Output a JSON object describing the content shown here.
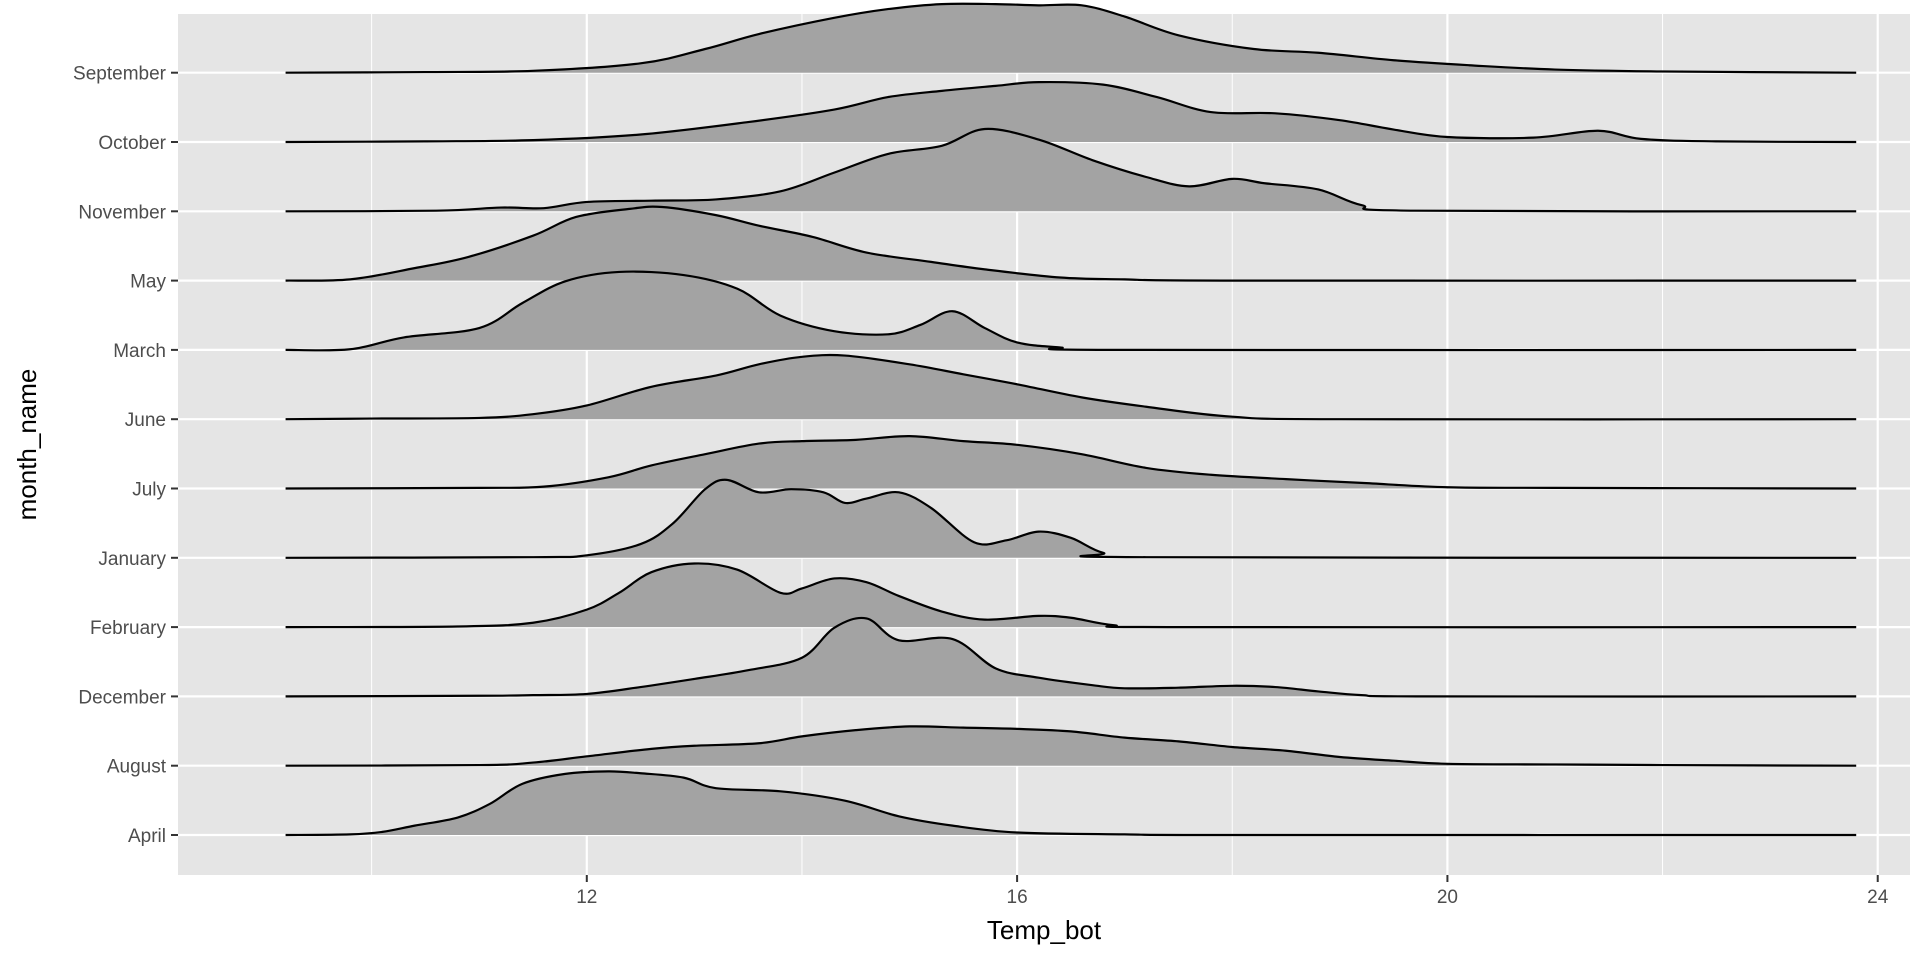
{
  "chart_data": {
    "type": "ridgeline",
    "title": "",
    "xlabel": "Temp_bot",
    "ylabel": "month_name",
    "xlim": [
      8.2,
      24.3
    ],
    "x_ticks": [
      12,
      16,
      20,
      24
    ],
    "x_minor_ticks": [
      10,
      14,
      18,
      22
    ],
    "x_range_data": [
      9.2,
      23.8
    ],
    "grid": true,
    "legend": "none",
    "fill_color": "#A3A3A3",
    "line_color": "#000000",
    "panel_color": "#E5E5E5",
    "categories": [
      "April",
      "August",
      "December",
      "February",
      "January",
      "July",
      "June",
      "March",
      "May",
      "November",
      "October",
      "September"
    ],
    "series": [
      {
        "label": "April",
        "points": [
          [
            9.2,
            0
          ],
          [
            9.8,
            0.01
          ],
          [
            10.1,
            0.05
          ],
          [
            10.4,
            0.15
          ],
          [
            10.8,
            0.28
          ],
          [
            11.1,
            0.5
          ],
          [
            11.4,
            0.82
          ],
          [
            11.8,
            0.98
          ],
          [
            12.2,
            1.02
          ],
          [
            12.5,
            0.99
          ],
          [
            12.9,
            0.92
          ],
          [
            13.2,
            0.75
          ],
          [
            13.8,
            0.7
          ],
          [
            14.4,
            0.55
          ],
          [
            14.9,
            0.3
          ],
          [
            15.4,
            0.15
          ],
          [
            16,
            0.04
          ],
          [
            17,
            0.01
          ],
          [
            18,
            0
          ],
          [
            23.8,
            0
          ]
        ]
      },
      {
        "label": "August",
        "points": [
          [
            9.2,
            0
          ],
          [
            11,
            0.01
          ],
          [
            11.5,
            0.05
          ],
          [
            12,
            0.15
          ],
          [
            12.6,
            0.27
          ],
          [
            13,
            0.32
          ],
          [
            13.6,
            0.36
          ],
          [
            14,
            0.47
          ],
          [
            14.5,
            0.57
          ],
          [
            15,
            0.63
          ],
          [
            15.5,
            0.61
          ],
          [
            16,
            0.59
          ],
          [
            16.5,
            0.55
          ],
          [
            17,
            0.45
          ],
          [
            17.5,
            0.39
          ],
          [
            18,
            0.3
          ],
          [
            18.5,
            0.24
          ],
          [
            19,
            0.14
          ],
          [
            19.5,
            0.08
          ],
          [
            20,
            0.03
          ],
          [
            21,
            0.02
          ],
          [
            22,
            0.01
          ],
          [
            23.8,
            0
          ]
        ]
      },
      {
        "label": "December",
        "points": [
          [
            9.2,
            0
          ],
          [
            11,
            0.01
          ],
          [
            11.5,
            0.02
          ],
          [
            12,
            0.04
          ],
          [
            12.5,
            0.15
          ],
          [
            13,
            0.28
          ],
          [
            13.5,
            0.42
          ],
          [
            14,
            0.62
          ],
          [
            14.3,
            1.1
          ],
          [
            14.6,
            1.25
          ],
          [
            14.9,
            0.9
          ],
          [
            15.4,
            0.92
          ],
          [
            15.8,
            0.45
          ],
          [
            16.2,
            0.3
          ],
          [
            16.7,
            0.18
          ],
          [
            17,
            0.13
          ],
          [
            17.5,
            0.14
          ],
          [
            18,
            0.17
          ],
          [
            18.4,
            0.15
          ],
          [
            18.8,
            0.08
          ],
          [
            19.2,
            0.02
          ],
          [
            19.8,
            0
          ],
          [
            23.8,
            0
          ]
        ]
      },
      {
        "label": "February",
        "points": [
          [
            9.2,
            0
          ],
          [
            10.8,
            0.01
          ],
          [
            11.5,
            0.07
          ],
          [
            12,
            0.28
          ],
          [
            12.3,
            0.55
          ],
          [
            12.6,
            0.88
          ],
          [
            13,
            1.02
          ],
          [
            13.4,
            0.92
          ],
          [
            13.8,
            0.55
          ],
          [
            14,
            0.62
          ],
          [
            14.3,
            0.78
          ],
          [
            14.6,
            0.72
          ],
          [
            14.9,
            0.5
          ],
          [
            15.3,
            0.25
          ],
          [
            15.7,
            0.12
          ],
          [
            16.2,
            0.18
          ],
          [
            16.5,
            0.15
          ],
          [
            16.9,
            0.03
          ],
          [
            17.5,
            0
          ],
          [
            23.8,
            0
          ]
        ]
      },
      {
        "label": "January",
        "points": [
          [
            9.2,
            0
          ],
          [
            11.5,
            0.01
          ],
          [
            12,
            0.04
          ],
          [
            12.5,
            0.22
          ],
          [
            12.8,
            0.55
          ],
          [
            13.1,
            1.1
          ],
          [
            13.3,
            1.25
          ],
          [
            13.6,
            1.05
          ],
          [
            13.9,
            1.1
          ],
          [
            14.2,
            1.05
          ],
          [
            14.4,
            0.88
          ],
          [
            14.6,
            0.95
          ],
          [
            14.9,
            1.05
          ],
          [
            15.2,
            0.8
          ],
          [
            15.6,
            0.25
          ],
          [
            15.9,
            0.28
          ],
          [
            16.2,
            0.42
          ],
          [
            16.5,
            0.32
          ],
          [
            16.8,
            0.08
          ],
          [
            17.2,
            0.01
          ],
          [
            23.8,
            0
          ]
        ]
      },
      {
        "label": "July",
        "points": [
          [
            9.2,
            0
          ],
          [
            11,
            0.01
          ],
          [
            11.6,
            0.03
          ],
          [
            12.2,
            0.18
          ],
          [
            12.6,
            0.37
          ],
          [
            13.1,
            0.55
          ],
          [
            13.6,
            0.72
          ],
          [
            14,
            0.76
          ],
          [
            14.5,
            0.78
          ],
          [
            15,
            0.84
          ],
          [
            15.5,
            0.76
          ],
          [
            16,
            0.7
          ],
          [
            16.6,
            0.55
          ],
          [
            17.2,
            0.33
          ],
          [
            17.8,
            0.22
          ],
          [
            18.5,
            0.15
          ],
          [
            19.2,
            0.09
          ],
          [
            20,
            0.02
          ],
          [
            21,
            0.01
          ],
          [
            23.8,
            0
          ]
        ]
      },
      {
        "label": "June",
        "points": [
          [
            9.2,
            0
          ],
          [
            10,
            0.01
          ],
          [
            11,
            0.02
          ],
          [
            11.5,
            0.08
          ],
          [
            12,
            0.22
          ],
          [
            12.6,
            0.52
          ],
          [
            13.2,
            0.7
          ],
          [
            13.6,
            0.88
          ],
          [
            14,
            1.0
          ],
          [
            14.4,
            1.02
          ],
          [
            15,
            0.88
          ],
          [
            15.5,
            0.72
          ],
          [
            16,
            0.56
          ],
          [
            16.6,
            0.35
          ],
          [
            17.2,
            0.2
          ],
          [
            18,
            0.04
          ],
          [
            19,
            0
          ],
          [
            23.8,
            0
          ]
        ]
      },
      {
        "label": "March",
        "points": [
          [
            9.2,
            0
          ],
          [
            9.8,
            0.01
          ],
          [
            10.3,
            0.2
          ],
          [
            11,
            0.35
          ],
          [
            11.4,
            0.75
          ],
          [
            11.8,
            1.1
          ],
          [
            12.3,
            1.25
          ],
          [
            12.9,
            1.2
          ],
          [
            13.4,
            0.98
          ],
          [
            13.8,
            0.55
          ],
          [
            14.3,
            0.3
          ],
          [
            14.8,
            0.25
          ],
          [
            15.1,
            0.4
          ],
          [
            15.4,
            0.62
          ],
          [
            15.7,
            0.35
          ],
          [
            16,
            0.12
          ],
          [
            16.4,
            0.04
          ],
          [
            17,
            0
          ],
          [
            23.8,
            0
          ]
        ]
      },
      {
        "label": "May",
        "points": [
          [
            9.2,
            0
          ],
          [
            9.8,
            0.02
          ],
          [
            10.4,
            0.2
          ],
          [
            10.9,
            0.38
          ],
          [
            11.5,
            0.72
          ],
          [
            11.9,
            1.02
          ],
          [
            12.4,
            1.15
          ],
          [
            12.7,
            1.18
          ],
          [
            13.2,
            1.05
          ],
          [
            13.6,
            0.88
          ],
          [
            14.1,
            0.7
          ],
          [
            14.6,
            0.45
          ],
          [
            15.2,
            0.3
          ],
          [
            15.7,
            0.18
          ],
          [
            16.4,
            0.05
          ],
          [
            17,
            0.02
          ],
          [
            18,
            0
          ],
          [
            23.8,
            0
          ]
        ]
      },
      {
        "label": "November",
        "points": [
          [
            9.2,
            0
          ],
          [
            10.6,
            0.01
          ],
          [
            11.2,
            0.06
          ],
          [
            11.6,
            0.05
          ],
          [
            12,
            0.15
          ],
          [
            12.6,
            0.17
          ],
          [
            13.2,
            0.19
          ],
          [
            13.8,
            0.32
          ],
          [
            14.3,
            0.62
          ],
          [
            14.8,
            0.92
          ],
          [
            15.3,
            1.05
          ],
          [
            15.7,
            1.32
          ],
          [
            16.2,
            1.15
          ],
          [
            16.7,
            0.82
          ],
          [
            17.2,
            0.55
          ],
          [
            17.6,
            0.4
          ],
          [
            18,
            0.52
          ],
          [
            18.3,
            0.45
          ],
          [
            18.8,
            0.35
          ],
          [
            19.2,
            0.1
          ],
          [
            19.7,
            0.01
          ],
          [
            23.8,
            0
          ]
        ]
      },
      {
        "label": "October",
        "points": [
          [
            9.2,
            0
          ],
          [
            10.5,
            0.01
          ],
          [
            11.5,
            0.03
          ],
          [
            12.5,
            0.12
          ],
          [
            13.5,
            0.32
          ],
          [
            14.3,
            0.52
          ],
          [
            14.8,
            0.72
          ],
          [
            15.3,
            0.82
          ],
          [
            15.8,
            0.9
          ],
          [
            16.2,
            0.96
          ],
          [
            16.8,
            0.92
          ],
          [
            17.3,
            0.72
          ],
          [
            17.8,
            0.48
          ],
          [
            18.4,
            0.46
          ],
          [
            19,
            0.35
          ],
          [
            19.5,
            0.2
          ],
          [
            20,
            0.08
          ],
          [
            20.8,
            0.07
          ],
          [
            21.4,
            0.18
          ],
          [
            21.8,
            0.05
          ],
          [
            22.5,
            0.01
          ],
          [
            23.8,
            0
          ]
        ]
      },
      {
        "label": "September",
        "points": [
          [
            9.2,
            0
          ],
          [
            10.5,
            0.01
          ],
          [
            11.5,
            0.03
          ],
          [
            12.5,
            0.15
          ],
          [
            13.1,
            0.38
          ],
          [
            13.6,
            0.62
          ],
          [
            14.3,
            0.88
          ],
          [
            14.8,
            1.02
          ],
          [
            15.3,
            1.1
          ],
          [
            15.8,
            1.1
          ],
          [
            16.2,
            1.08
          ],
          [
            16.6,
            1.08
          ],
          [
            17,
            0.9
          ],
          [
            17.5,
            0.6
          ],
          [
            18.2,
            0.38
          ],
          [
            18.8,
            0.32
          ],
          [
            19.5,
            0.2
          ],
          [
            20.2,
            0.12
          ],
          [
            21,
            0.05
          ],
          [
            22,
            0.02
          ],
          [
            23.8,
            0
          ]
        ]
      }
    ]
  }
}
